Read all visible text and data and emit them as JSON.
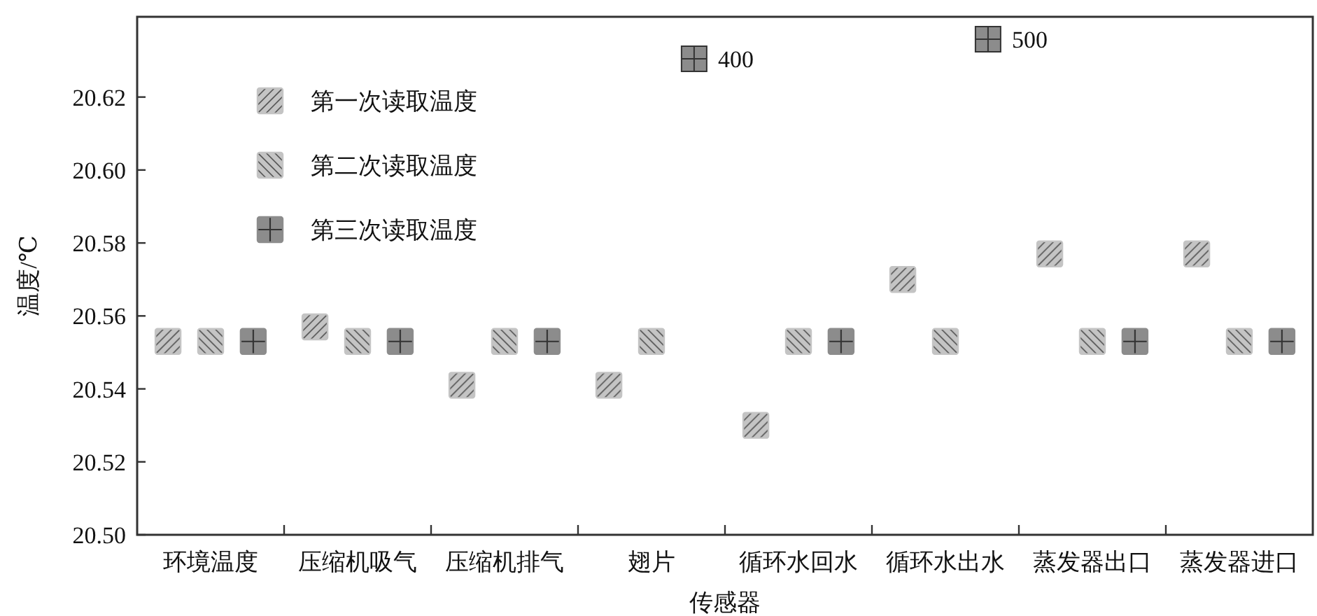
{
  "chart_data": {
    "type": "scatter",
    "xlabel": "传感器",
    "ylabel": "温度/℃",
    "categories": [
      "环境温度",
      "压缩机吸气",
      "压缩机排气",
      "翅片",
      "循环水回水",
      "循环水出水",
      "蒸发器出口",
      "蒸发器进口"
    ],
    "series": [
      {
        "name": "第一次读取温度",
        "color": "#c4c4c4",
        "values": [
          20.553,
          20.557,
          20.541,
          20.541,
          20.53,
          20.57,
          20.577,
          20.577
        ]
      },
      {
        "name": "第二次读取温度",
        "color": "#c4c4c4",
        "values": [
          20.553,
          20.553,
          20.553,
          20.553,
          20.553,
          20.553,
          20.553,
          20.553
        ]
      },
      {
        "name": "第三次读取温度",
        "color": "#8c8c8c",
        "values": [
          20.553,
          20.553,
          20.553,
          null,
          20.553,
          null,
          20.553,
          20.553
        ]
      }
    ],
    "annotations": [
      "400",
      "500"
    ],
    "ylim": [
      20.5,
      20.642
    ],
    "yticks": [
      {
        "value": 20.5,
        "label": "20.50"
      },
      {
        "value": 20.52,
        "label": "20.52"
      },
      {
        "value": 20.54,
        "label": "20.54"
      },
      {
        "value": 20.56,
        "label": "20.56"
      },
      {
        "value": 20.58,
        "label": "20.58"
      },
      {
        "value": 20.6,
        "label": "20.60"
      },
      {
        "value": 20.62,
        "label": "20.62"
      }
    ],
    "marker": "square",
    "legend": "top left",
    "grid": false
  }
}
